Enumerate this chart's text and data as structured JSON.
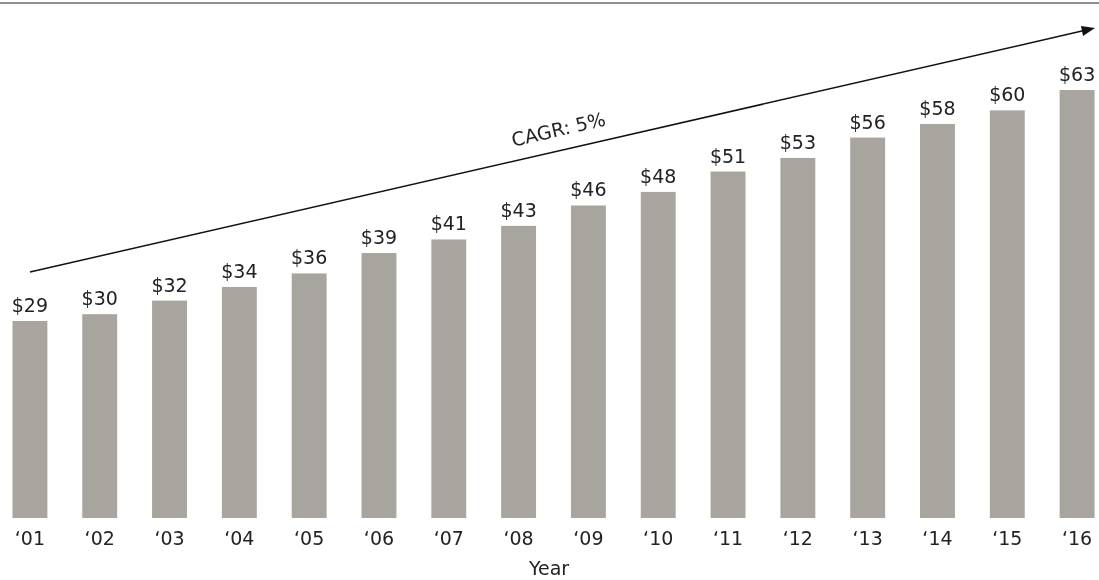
{
  "chart_data": {
    "type": "bar",
    "xlabel": "Year",
    "categories": [
      "‘01",
      "‘02",
      "‘03",
      "‘04",
      "‘05",
      "‘06",
      "‘07",
      "‘08",
      "‘09",
      "‘10",
      "‘11",
      "‘12",
      "‘13",
      "‘14",
      "‘15",
      "‘16"
    ],
    "values": [
      29,
      30,
      32,
      34,
      36,
      39,
      41,
      43,
      46,
      48,
      51,
      53,
      56,
      58,
      60,
      63
    ],
    "color": "#a8a59e",
    "value_labels": [
      "$29",
      "$30",
      "$32",
      "$34",
      "$36",
      "$39",
      "$41",
      "$43",
      "$46",
      "$48",
      "$51",
      "$53",
      "$56",
      "$58",
      "$60",
      "$63"
    ],
    "annotations": [
      "CAGR: 5%"
    ]
  }
}
